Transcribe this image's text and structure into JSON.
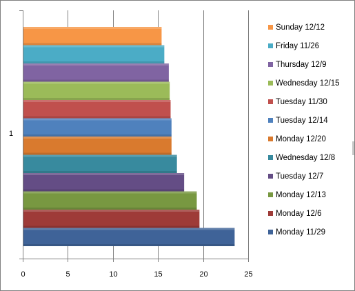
{
  "chart_data": {
    "type": "bar",
    "orientation": "horizontal",
    "categories": [
      "1"
    ],
    "xlim": [
      0,
      25
    ],
    "x_ticks": [
      "0",
      "5",
      "10",
      "15",
      "20",
      "25"
    ],
    "grid": "vertical gridlines at 5-unit intervals",
    "legend_position": "right",
    "series": [
      {
        "name": "Monday 11/29",
        "value": 23.5,
        "color": "#3F6398"
      },
      {
        "name": "Monday 12/6",
        "value": 19.6,
        "color": "#9E3B38"
      },
      {
        "name": "Monday 12/13",
        "value": 19.3,
        "color": "#789841"
      },
      {
        "name": "Tuesday 12/7",
        "value": 17.9,
        "color": "#644D85"
      },
      {
        "name": "Wednesday 12/8",
        "value": 17.1,
        "color": "#388A9E"
      },
      {
        "name": "Monday 12/20",
        "value": 16.5,
        "color": "#D97A2E"
      },
      {
        "name": "Tuesday 12/14",
        "value": 16.5,
        "color": "#4F81BD"
      },
      {
        "name": "Tuesday 11/30",
        "value": 16.4,
        "color": "#C0504D"
      },
      {
        "name": "Wednesday 12/15",
        "value": 16.3,
        "color": "#9BBB59"
      },
      {
        "name": "Thursday 12/9",
        "value": 16.2,
        "color": "#8064A2"
      },
      {
        "name": "Friday 11/26",
        "value": 15.7,
        "color": "#4BACC6"
      },
      {
        "name": "Sunday 12/12",
        "value": 15.4,
        "color": "#F79646"
      }
    ]
  }
}
